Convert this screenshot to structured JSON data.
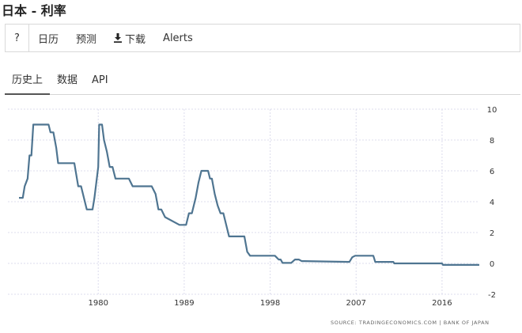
{
  "title": "日本 - 利率",
  "toolbar": {
    "help": "?",
    "calendar": "日历",
    "forecast": "预测",
    "download": "下载",
    "alerts": "Alerts",
    "download_icon": "download-icon"
  },
  "tabs": [
    {
      "label": "历史上",
      "active": true
    },
    {
      "label": "数据",
      "active": false
    },
    {
      "label": "API",
      "active": false
    }
  ],
  "source": "SOURCE: TRADINGECONOMICS.COM  |  BANK OF JAPAN",
  "colors": {
    "line": "#4f7591",
    "grid": "#dcdcec"
  },
  "chart_data": {
    "type": "line",
    "title": "",
    "xlabel": "",
    "ylabel": "",
    "xlim": [
      1971.7,
      2019.9
    ],
    "ylim": [
      -2,
      10
    ],
    "x_ticks": [
      1980,
      1989,
      1998,
      2007,
      2016
    ],
    "y_ticks": [
      10,
      8,
      6,
      4,
      2,
      0,
      -2
    ],
    "y_axis_position": "right",
    "grid": true,
    "series": [
      {
        "x": [
          1971.7,
          1972.1,
          1972.3,
          1972.6,
          1972.8,
          1973.0,
          1973.2,
          1973.4,
          1974.8,
          1975.0,
          1975.3,
          1975.6,
          1975.8,
          1976.0,
          1977.5,
          1977.9,
          1978.2,
          1978.5,
          1978.8,
          1979.0,
          1979.4,
          1979.6,
          1979.8,
          1980.0,
          1980.1,
          1980.4,
          1980.6,
          1980.9,
          1981.2,
          1981.5,
          1981.8,
          1983.2,
          1983.6,
          1985.6,
          1986.0,
          1986.3,
          1986.6,
          1987.0,
          1988.5,
          1989.2,
          1989.5,
          1989.8,
          1990.2,
          1990.5,
          1990.8,
          1991.5,
          1991.7,
          1991.9,
          1992.2,
          1992.5,
          1992.8,
          1993.1,
          1993.4,
          1993.7,
          1995.3,
          1995.6,
          1995.9,
          1998.5,
          1998.9,
          1999.1,
          1999.3,
          2000.2,
          2000.6,
          2001.0,
          2001.3,
          2001.6,
          2006.3,
          2006.6,
          2006.9,
          2008.8,
          2008.9,
          2009.0,
          2010.9,
          2011.0,
          2016.0,
          2016.1,
          2019.9
        ],
        "y": [
          4.25,
          4.25,
          5.0,
          5.5,
          7.0,
          7.0,
          9.0,
          9.0,
          9.0,
          8.5,
          8.5,
          7.5,
          6.5,
          6.5,
          6.5,
          5.0,
          5.0,
          4.25,
          3.5,
          3.5,
          3.5,
          4.25,
          5.25,
          6.25,
          9.0,
          9.0,
          8.0,
          7.25,
          6.25,
          6.25,
          5.5,
          5.5,
          5.0,
          5.0,
          4.5,
          3.5,
          3.5,
          3.0,
          2.5,
          2.5,
          3.25,
          3.25,
          4.25,
          5.25,
          6.0,
          6.0,
          5.5,
          5.5,
          4.5,
          3.75,
          3.25,
          3.25,
          2.5,
          1.75,
          1.75,
          0.75,
          0.5,
          0.5,
          0.25,
          0.25,
          0.03,
          0.03,
          0.25,
          0.25,
          0.15,
          0.15,
          0.1,
          0.4,
          0.5,
          0.5,
          0.3,
          0.1,
          0.1,
          0.0,
          0.0,
          -0.1,
          -0.1
        ]
      }
    ]
  }
}
